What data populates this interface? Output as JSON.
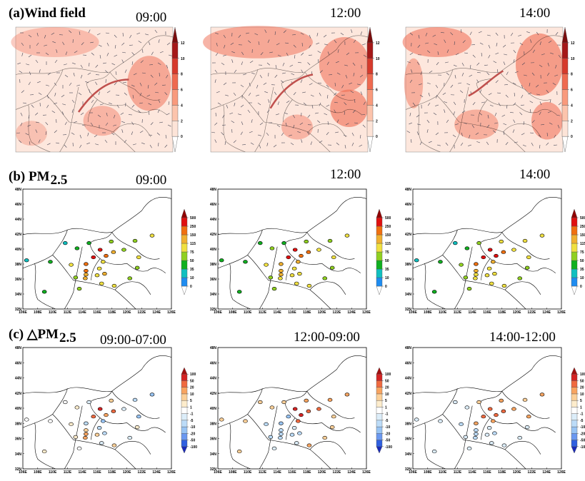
{
  "rows": [
    {
      "label": "(a)Wind field",
      "times": [
        "09:00",
        "12:00",
        "14:00"
      ]
    },
    {
      "label": "(b) PM",
      "label_sub": "2.5",
      "times": [
        "09:00",
        "12:00",
        "14:00"
      ]
    },
    {
      "label": "(c) △PM",
      "label_sub": "2.5",
      "times": [
        "09:00-07:00",
        "12:00-09:00",
        "14:00-12:00"
      ]
    }
  ],
  "map": {
    "lonlim": [
      106,
      126
    ],
    "latlim": [
      32,
      48
    ],
    "lonticks": [
      {
        "value": 106,
        "label": "106E"
      },
      {
        "value": 108,
        "label": "108E"
      },
      {
        "value": 110,
        "label": "110E"
      },
      {
        "value": 112,
        "label": "112E"
      },
      {
        "value": 114,
        "label": "114E"
      },
      {
        "value": 116,
        "label": "116E"
      },
      {
        "value": 118,
        "label": "118E"
      },
      {
        "value": 120,
        "label": "120E"
      },
      {
        "value": 122,
        "label": "122E"
      },
      {
        "value": 124,
        "label": "124E"
      },
      {
        "value": 126,
        "label": "126E"
      }
    ],
    "latticks": [
      {
        "value": 32,
        "label": "32N"
      },
      {
        "value": 34,
        "label": "34N"
      },
      {
        "value": 36,
        "label": "36N"
      },
      {
        "value": 38,
        "label": "38N"
      },
      {
        "value": 40,
        "label": "40N"
      },
      {
        "value": 42,
        "label": "42N"
      },
      {
        "value": 44,
        "label": "44N"
      },
      {
        "value": 46,
        "label": "46N"
      },
      {
        "value": 48,
        "label": "48N"
      }
    ]
  },
  "wind_colorbar": {
    "levels": [
      0,
      2,
      4,
      6,
      8,
      10,
      12
    ],
    "colors": [
      "#ffffff",
      "#fde4d8",
      "#fcc4ac",
      "#f99a7c",
      "#ef6a50",
      "#d63a2c",
      "#a51818",
      "#7a0c0c"
    ]
  },
  "pm_colorbar": {
    "levels": [
      0,
      10,
      35,
      50,
      75,
      115,
      150,
      250,
      500
    ],
    "colors": [
      "#ffffff",
      "#1e8cf0",
      "#10c0c0",
      "#10b020",
      "#90d020",
      "#f0e040",
      "#f0b030",
      "#f07010",
      "#e01010",
      "#900000"
    ]
  },
  "delta_colorbar": {
    "levels": [
      -100,
      -50,
      -20,
      -10,
      -5,
      -1,
      1,
      5,
      10,
      20,
      50,
      100
    ],
    "colors": [
      "#1a2ab8",
      "#3060e0",
      "#6a98f0",
      "#98c4f4",
      "#bcdcf8",
      "#dcedf9",
      "#ffffff",
      "#fdeccc",
      "#fcd098",
      "#f8a460",
      "#f06a40",
      "#d42424",
      "#a01010"
    ]
  },
  "stations": {
    "lon": [
      116.4,
      117.2,
      114.5,
      112.5,
      117.0,
      113.6,
      115.5,
      118.2,
      119.6,
      114.9,
      117.9,
      111.7,
      113.3,
      114.5,
      114.5,
      116.8,
      116.3,
      120.4,
      121.4,
      121.6,
      123.4,
      108.9,
      106.5,
      118.3,
      116.6,
      114.4,
      116.0,
      109.7,
      113.1,
      121.1
    ],
    "lat": [
      39.9,
      39.1,
      38.0,
      37.9,
      36.7,
      34.7,
      38.9,
      39.6,
      39.9,
      40.8,
      41.0,
      40.8,
      40.1,
      36.6,
      37.1,
      38.3,
      37.4,
      36.1,
      37.5,
      38.9,
      41.8,
      34.3,
      38.5,
      35.1,
      35.4,
      36.1,
      36.5,
      38.3,
      36.2,
      41.1
    ]
  },
  "pm_values": [
    [
      260,
      180,
      160,
      90,
      120,
      60,
      300,
      140,
      70,
      40,
      55,
      30,
      45,
      130,
      150,
      110,
      100,
      60,
      50,
      80,
      90,
      40,
      30,
      80,
      100,
      120,
      110,
      35,
      70,
      60
    ],
    [
      320,
      230,
      140,
      80,
      110,
      55,
      280,
      170,
      90,
      45,
      70,
      35,
      50,
      120,
      140,
      130,
      95,
      65,
      55,
      85,
      100,
      45,
      35,
      90,
      95,
      110,
      100,
      40,
      60,
      70
    ],
    [
      350,
      260,
      150,
      70,
      100,
      50,
      300,
      190,
      100,
      50,
      80,
      30,
      45,
      110,
      130,
      140,
      90,
      60,
      50,
      95,
      110,
      40,
      30,
      85,
      90,
      100,
      95,
      35,
      55,
      75
    ]
  ],
  "delta_values": [
    [
      60,
      15,
      -10,
      3,
      -6,
      0,
      40,
      25,
      -3,
      -2,
      8,
      0,
      2,
      12,
      7,
      -15,
      -8,
      -5,
      4,
      -12,
      -20,
      2,
      0,
      6,
      -4,
      10,
      5,
      -1,
      3,
      -7
    ],
    [
      60,
      50,
      -20,
      -10,
      -10,
      -5,
      -20,
      30,
      20,
      5,
      15,
      5,
      5,
      -10,
      -10,
      20,
      -5,
      5,
      5,
      5,
      10,
      5,
      5,
      10,
      -5,
      -10,
      -10,
      5,
      -10,
      10
    ],
    [
      30,
      30,
      10,
      -10,
      -10,
      -5,
      20,
      20,
      10,
      5,
      10,
      -5,
      -5,
      -10,
      -10,
      10,
      -5,
      -5,
      -5,
      10,
      10,
      -5,
      -5,
      -5,
      -5,
      -10,
      -5,
      -5,
      -5,
      5
    ]
  ]
}
